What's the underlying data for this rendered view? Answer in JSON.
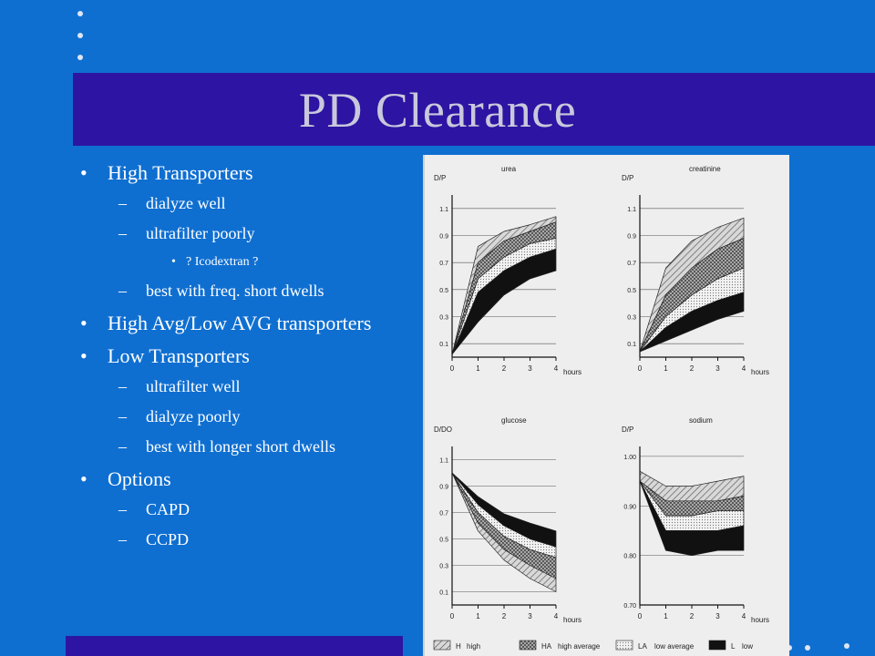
{
  "slide": {
    "title": "PD Clearance",
    "bullets": [
      {
        "text": "High Transporters",
        "children": [
          {
            "text": "dialyze well"
          },
          {
            "text": "ultrafilter poorly",
            "children": [
              {
                "text": "? Icodextran ?"
              }
            ]
          },
          {
            "text": "best with freq. short dwells"
          }
        ]
      },
      {
        "text": "High Avg/Low AVG transporters"
      },
      {
        "text": "Low Transporters",
        "children": [
          {
            "text": "ultrafilter well"
          },
          {
            "text": "dialyze poorly"
          },
          {
            "text": "best with longer short dwells"
          }
        ]
      },
      {
        "text": "Options",
        "children": [
          {
            "text": "CAPD"
          },
          {
            "text": "CCPD"
          }
        ]
      }
    ],
    "markers": {
      "level1": "•",
      "level2": "–",
      "level3": "•"
    }
  },
  "chart_data": [
    {
      "type": "area",
      "title": "urea",
      "ylabel": "D/P",
      "xlabel": "hours",
      "x": [
        0,
        1,
        2,
        3,
        4
      ],
      "ylim": [
        0,
        1.2
      ],
      "yticks": [
        "0.1",
        "0.3",
        "0.5",
        "0.7",
        "0.9",
        "1.1"
      ],
      "xticks": [
        "0",
        "1",
        "2",
        "3",
        "4"
      ],
      "bands": [
        {
          "name": "H",
          "lower": [
            0.02,
            0.7,
            0.86,
            0.93,
            1.0
          ],
          "upper": [
            0.02,
            0.82,
            0.93,
            0.98,
            1.04
          ]
        },
        {
          "name": "HA",
          "lower": [
            0.02,
            0.58,
            0.74,
            0.84,
            0.88
          ],
          "upper": [
            0.02,
            0.7,
            0.86,
            0.93,
            1.0
          ]
        },
        {
          "name": "LA",
          "lower": [
            0.02,
            0.48,
            0.64,
            0.74,
            0.8
          ],
          "upper": [
            0.02,
            0.58,
            0.74,
            0.84,
            0.88
          ]
        },
        {
          "name": "L",
          "lower": [
            0.02,
            0.26,
            0.46,
            0.58,
            0.64
          ],
          "upper": [
            0.02,
            0.48,
            0.64,
            0.74,
            0.8
          ]
        }
      ]
    },
    {
      "type": "area",
      "title": "creatinine",
      "ylabel": "D/P",
      "xlabel": "hours",
      "x": [
        0,
        1,
        2,
        3,
        4
      ],
      "ylim": [
        0,
        1.2
      ],
      "yticks": [
        "0.1",
        "0.3",
        "0.5",
        "0.7",
        "0.9",
        "1.1"
      ],
      "xticks": [
        "0",
        "1",
        "2",
        "3",
        "4"
      ],
      "bands": [
        {
          "name": "H",
          "lower": [
            0.04,
            0.46,
            0.66,
            0.8,
            0.88
          ],
          "upper": [
            0.04,
            0.66,
            0.86,
            0.96,
            1.03
          ]
        },
        {
          "name": "HA",
          "lower": [
            0.04,
            0.3,
            0.46,
            0.58,
            0.66
          ],
          "upper": [
            0.04,
            0.46,
            0.66,
            0.8,
            0.88
          ]
        },
        {
          "name": "LA",
          "lower": [
            0.04,
            0.22,
            0.34,
            0.42,
            0.48
          ],
          "upper": [
            0.04,
            0.3,
            0.46,
            0.58,
            0.66
          ]
        },
        {
          "name": "L",
          "lower": [
            0.04,
            0.12,
            0.2,
            0.28,
            0.34
          ],
          "upper": [
            0.04,
            0.22,
            0.34,
            0.42,
            0.48
          ]
        }
      ]
    },
    {
      "type": "area",
      "title": "glucose",
      "ylabel": "D/DO",
      "xlabel": "hours",
      "x": [
        0,
        1,
        2,
        3,
        4
      ],
      "ylim": [
        0,
        1.2
      ],
      "yticks": [
        "0.1",
        "0.3",
        "0.5",
        "0.7",
        "0.9",
        "1.1"
      ],
      "xticks": [
        "0",
        "1",
        "2",
        "3",
        "4"
      ],
      "bands": [
        {
          "name": "H",
          "lower": [
            1.0,
            0.56,
            0.34,
            0.2,
            0.1
          ],
          "upper": [
            1.0,
            0.62,
            0.42,
            0.3,
            0.2
          ]
        },
        {
          "name": "HA",
          "lower": [
            1.0,
            0.62,
            0.42,
            0.3,
            0.2
          ],
          "upper": [
            1.0,
            0.7,
            0.52,
            0.42,
            0.36
          ]
        },
        {
          "name": "LA",
          "lower": [
            1.0,
            0.7,
            0.52,
            0.42,
            0.36
          ],
          "upper": [
            1.0,
            0.76,
            0.6,
            0.5,
            0.44
          ]
        },
        {
          "name": "L",
          "lower": [
            1.0,
            0.76,
            0.6,
            0.5,
            0.44
          ],
          "upper": [
            1.0,
            0.82,
            0.69,
            0.62,
            0.56
          ]
        }
      ]
    },
    {
      "type": "area",
      "title": "sodium",
      "ylabel": "D/P",
      "xlabel": "hours",
      "x": [
        0,
        1,
        2,
        3,
        4
      ],
      "ylim": [
        0.7,
        1.02
      ],
      "yticks": [
        "0.70",
        "0.80",
        "0.90",
        "1.00"
      ],
      "xticks": [
        "0",
        "1",
        "2",
        "3",
        "4"
      ],
      "bands": [
        {
          "name": "H",
          "lower": [
            0.95,
            0.91,
            0.91,
            0.91,
            0.92
          ],
          "upper": [
            0.97,
            0.94,
            0.94,
            0.95,
            0.96
          ]
        },
        {
          "name": "HA",
          "lower": [
            0.95,
            0.88,
            0.88,
            0.89,
            0.89
          ],
          "upper": [
            0.95,
            0.91,
            0.91,
            0.91,
            0.92
          ]
        },
        {
          "name": "LA",
          "lower": [
            0.95,
            0.85,
            0.85,
            0.85,
            0.86
          ],
          "upper": [
            0.95,
            0.88,
            0.88,
            0.89,
            0.89
          ]
        },
        {
          "name": "L",
          "lower": [
            0.95,
            0.81,
            0.8,
            0.81,
            0.81
          ],
          "upper": [
            0.95,
            0.85,
            0.85,
            0.85,
            0.86
          ]
        }
      ]
    }
  ],
  "legend": [
    {
      "code": "H",
      "label": "high"
    },
    {
      "code": "HA",
      "label": "high average"
    },
    {
      "code": "LA",
      "label": "low average"
    },
    {
      "code": "L",
      "label": "low"
    }
  ]
}
